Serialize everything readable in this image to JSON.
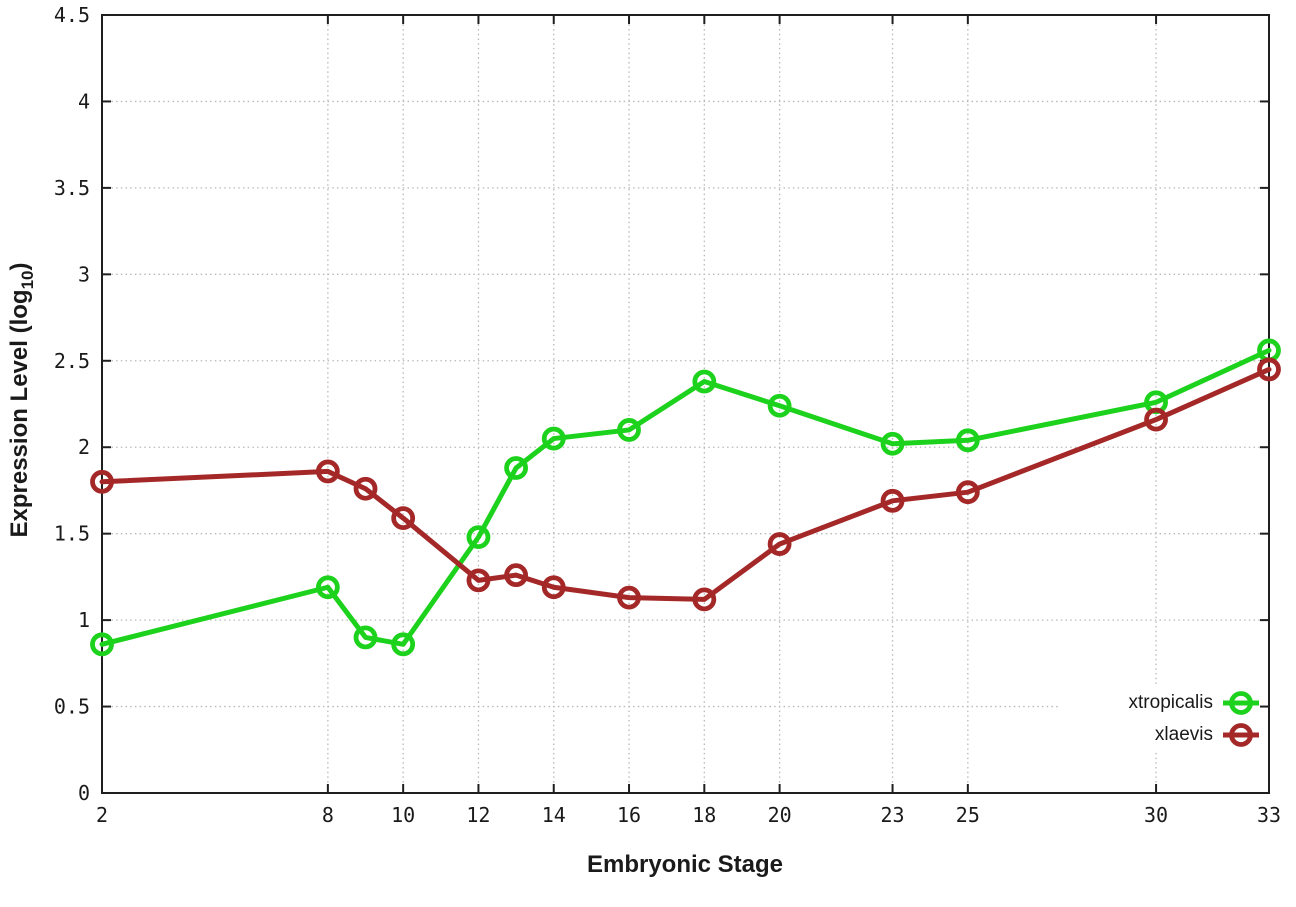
{
  "chart_data": {
    "type": "line",
    "title": "",
    "xlabel": "Embryonic Stage",
    "ylabel": "Expression Level (log10)",
    "ylabel_parts": {
      "pre": "Expression Level (log",
      "sub": "10",
      "post": ")"
    },
    "xlim": [
      2,
      33
    ],
    "ylim": [
      0,
      4.5
    ],
    "grid": true,
    "legend_position": "inside bottom-right",
    "x": [
      2,
      8,
      9,
      10,
      12,
      13,
      14,
      16,
      18,
      20,
      23,
      25,
      30,
      33
    ],
    "xticks": [
      2,
      8,
      10,
      12,
      14,
      16,
      18,
      20,
      23,
      25,
      30,
      33
    ],
    "yticks": [
      0,
      0.5,
      1,
      1.5,
      2,
      2.5,
      3,
      3.5,
      4,
      4.5
    ],
    "ytick_labels": [
      "0",
      "0.5",
      "1",
      "1.5",
      "2",
      "2.5",
      "3",
      "3.5",
      "4",
      "4.5"
    ],
    "series": [
      {
        "name": "xtropicalis",
        "color": "#1dd21d",
        "marker": "open-circle",
        "values": [
          0.86,
          1.19,
          0.9,
          0.86,
          1.48,
          1.88,
          2.05,
          2.1,
          2.38,
          2.24,
          2.02,
          2.04,
          2.26,
          2.56
        ]
      },
      {
        "name": "xlaevis",
        "color": "#a52828",
        "marker": "open-circle",
        "values": [
          1.8,
          1.86,
          1.76,
          1.59,
          1.23,
          1.26,
          1.19,
          1.13,
          1.12,
          1.44,
          1.69,
          1.74,
          2.16,
          2.45
        ]
      }
    ]
  },
  "style": {
    "background": "#ffffff",
    "border_color": "#1f1f1f",
    "grid_color": "#b8b8b8",
    "text_color": "#1a1a1a"
  }
}
